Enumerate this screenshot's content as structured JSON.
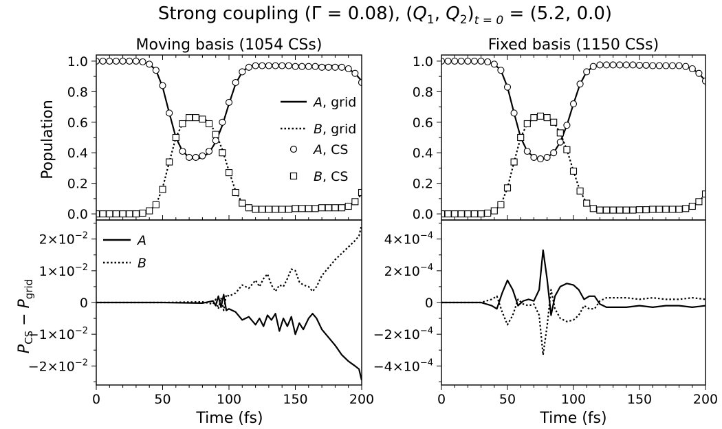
{
  "figure": {
    "title": "Strong coupling (Γ = 0.08), (Q₁, Q₂)ₜ₌₀ = (5.2, 0.0)",
    "title_parts": {
      "prefix": "Strong coupling (Γ = 0.08), (",
      "q": "Q",
      "sub1": "1",
      "sep": ", ",
      "sub2": "2",
      "close": ")",
      "tsub": "t = 0",
      "suffix": " = (5.2, 0.0)"
    }
  },
  "labels": {
    "ylabel_top": "Population",
    "ylabel_bottom_P": "P",
    "ylabel_bottom_cs": "CS",
    "ylabel_bottom_minus": " − ",
    "ylabel_bottom_grid": "grid",
    "xlabel": "Time (fs)"
  },
  "legend_top": {
    "entries": [
      {
        "state": "A",
        "suffix": ", grid",
        "style": "solid"
      },
      {
        "state": "B",
        "suffix": ", grid",
        "style": "dotted"
      },
      {
        "state": "A",
        "suffix": ", CS",
        "marker": "circle"
      },
      {
        "state": "B",
        "suffix": ", CS",
        "marker": "square"
      }
    ]
  },
  "legend_bottom": {
    "entries": [
      {
        "state": "A",
        "style": "solid"
      },
      {
        "state": "B",
        "style": "dotted"
      }
    ]
  },
  "chart_data": [
    {
      "panel": "moving-population",
      "type": "line",
      "title": "Moving basis (1054 CSs)",
      "xlabel": "",
      "ylabel": "Population",
      "xlim": [
        0,
        200
      ],
      "ylim": [
        -0.04,
        1.04
      ],
      "yticks": [
        "0.0",
        "0.2",
        "0.4",
        "0.6",
        "0.8",
        "1.0"
      ],
      "series": [
        {
          "name": "A, grid",
          "x": [
            0,
            20,
            35,
            40,
            45,
            50,
            55,
            60,
            65,
            70,
            75,
            80,
            85,
            90,
            95,
            100,
            105,
            110,
            115,
            120,
            130,
            140,
            150,
            160,
            170,
            180,
            185,
            190,
            195,
            200
          ],
          "values": [
            1.0,
            1.0,
            0.995,
            0.98,
            0.94,
            0.83,
            0.66,
            0.5,
            0.41,
            0.37,
            0.36,
            0.37,
            0.4,
            0.47,
            0.58,
            0.72,
            0.85,
            0.93,
            0.965,
            0.975,
            0.975,
            0.975,
            0.973,
            0.97,
            0.97,
            0.97,
            0.965,
            0.95,
            0.92,
            0.87
          ]
        },
        {
          "name": "B, grid",
          "x": [
            0,
            20,
            35,
            40,
            45,
            50,
            55,
            60,
            65,
            70,
            75,
            80,
            85,
            90,
            95,
            100,
            105,
            110,
            115,
            120,
            130,
            140,
            150,
            160,
            170,
            180,
            185,
            190,
            195,
            200
          ],
          "values": [
            0.0,
            0.0,
            0.005,
            0.02,
            0.06,
            0.17,
            0.34,
            0.5,
            0.59,
            0.63,
            0.64,
            0.63,
            0.6,
            0.53,
            0.42,
            0.28,
            0.15,
            0.07,
            0.035,
            0.025,
            0.025,
            0.025,
            0.027,
            0.03,
            0.03,
            0.03,
            0.035,
            0.05,
            0.08,
            0.13
          ]
        },
        {
          "name": "A, CS",
          "x": [
            0,
            5,
            10,
            15,
            20,
            25,
            30,
            35,
            40,
            45,
            50,
            55,
            60,
            65,
            70,
            75,
            80,
            85,
            90,
            95,
            100,
            105,
            110,
            115,
            120,
            125,
            130,
            135,
            140,
            145,
            150,
            155,
            160,
            165,
            170,
            175,
            180,
            185,
            190,
            195,
            200
          ],
          "values": [
            1.0,
            1.0,
            1.0,
            1.0,
            1.0,
            1.0,
            1.0,
            0.995,
            0.98,
            0.94,
            0.84,
            0.66,
            0.5,
            0.41,
            0.37,
            0.37,
            0.38,
            0.41,
            0.48,
            0.6,
            0.73,
            0.86,
            0.93,
            0.96,
            0.97,
            0.97,
            0.97,
            0.97,
            0.97,
            0.97,
            0.965,
            0.965,
            0.965,
            0.965,
            0.96,
            0.96,
            0.96,
            0.96,
            0.95,
            0.92,
            0.86
          ]
        },
        {
          "name": "B, CS",
          "x": [
            0,
            5,
            10,
            15,
            20,
            25,
            30,
            35,
            40,
            45,
            50,
            55,
            60,
            65,
            70,
            75,
            80,
            85,
            90,
            95,
            100,
            105,
            110,
            115,
            120,
            125,
            130,
            135,
            140,
            145,
            150,
            155,
            160,
            165,
            170,
            175,
            180,
            185,
            190,
            195,
            200
          ],
          "values": [
            0.0,
            0.0,
            0.0,
            0.0,
            0.0,
            0.0,
            0.0,
            0.005,
            0.02,
            0.06,
            0.16,
            0.34,
            0.5,
            0.59,
            0.63,
            0.63,
            0.62,
            0.59,
            0.52,
            0.4,
            0.27,
            0.14,
            0.07,
            0.04,
            0.03,
            0.03,
            0.03,
            0.03,
            0.03,
            0.03,
            0.035,
            0.035,
            0.035,
            0.035,
            0.04,
            0.04,
            0.04,
            0.04,
            0.05,
            0.08,
            0.14
          ]
        }
      ]
    },
    {
      "panel": "fixed-population",
      "type": "line",
      "title": "Fixed basis (1150 CSs)",
      "xlabel": "",
      "ylabel": "",
      "xlim": [
        0,
        200
      ],
      "ylim": [
        -0.04,
        1.04
      ],
      "yticks": [
        "0.0",
        "0.2",
        "0.4",
        "0.6",
        "0.8",
        "1.0"
      ],
      "series": [
        {
          "name": "A, grid",
          "x": [
            0,
            20,
            35,
            40,
            45,
            50,
            55,
            60,
            65,
            70,
            75,
            80,
            85,
            90,
            95,
            100,
            105,
            110,
            115,
            120,
            130,
            140,
            150,
            160,
            170,
            180,
            185,
            190,
            195,
            200
          ],
          "values": [
            1.0,
            1.0,
            0.995,
            0.98,
            0.94,
            0.83,
            0.66,
            0.5,
            0.41,
            0.37,
            0.36,
            0.37,
            0.4,
            0.47,
            0.58,
            0.72,
            0.85,
            0.93,
            0.965,
            0.975,
            0.975,
            0.975,
            0.973,
            0.97,
            0.97,
            0.97,
            0.965,
            0.95,
            0.92,
            0.87
          ]
        },
        {
          "name": "B, grid",
          "x": [
            0,
            20,
            35,
            40,
            45,
            50,
            55,
            60,
            65,
            70,
            75,
            80,
            85,
            90,
            95,
            100,
            105,
            110,
            115,
            120,
            130,
            140,
            150,
            160,
            170,
            180,
            185,
            190,
            195,
            200
          ],
          "values": [
            0.0,
            0.0,
            0.005,
            0.02,
            0.06,
            0.17,
            0.34,
            0.5,
            0.59,
            0.63,
            0.64,
            0.63,
            0.6,
            0.53,
            0.42,
            0.28,
            0.15,
            0.07,
            0.035,
            0.025,
            0.025,
            0.025,
            0.027,
            0.03,
            0.03,
            0.03,
            0.035,
            0.05,
            0.08,
            0.13
          ]
        },
        {
          "name": "A, CS",
          "x": [
            0,
            5,
            10,
            15,
            20,
            25,
            30,
            35,
            40,
            45,
            50,
            55,
            60,
            65,
            70,
            75,
            80,
            85,
            90,
            95,
            100,
            105,
            110,
            115,
            120,
            125,
            130,
            135,
            140,
            145,
            150,
            155,
            160,
            165,
            170,
            175,
            180,
            185,
            190,
            195,
            200
          ],
          "values": [
            1.0,
            1.0,
            1.0,
            1.0,
            1.0,
            1.0,
            1.0,
            0.995,
            0.98,
            0.94,
            0.83,
            0.66,
            0.5,
            0.41,
            0.37,
            0.36,
            0.37,
            0.4,
            0.47,
            0.58,
            0.72,
            0.85,
            0.93,
            0.965,
            0.975,
            0.975,
            0.975,
            0.975,
            0.975,
            0.975,
            0.973,
            0.973,
            0.97,
            0.97,
            0.97,
            0.97,
            0.97,
            0.965,
            0.95,
            0.92,
            0.87
          ]
        },
        {
          "name": "B, CS",
          "x": [
            0,
            5,
            10,
            15,
            20,
            25,
            30,
            35,
            40,
            45,
            50,
            55,
            60,
            65,
            70,
            75,
            80,
            85,
            90,
            95,
            100,
            105,
            110,
            115,
            120,
            125,
            130,
            135,
            140,
            145,
            150,
            155,
            160,
            165,
            170,
            175,
            180,
            185,
            190,
            195,
            200
          ],
          "values": [
            0.0,
            0.0,
            0.0,
            0.0,
            0.0,
            0.0,
            0.0,
            0.005,
            0.02,
            0.06,
            0.17,
            0.34,
            0.5,
            0.59,
            0.63,
            0.64,
            0.63,
            0.6,
            0.53,
            0.42,
            0.28,
            0.15,
            0.07,
            0.035,
            0.025,
            0.025,
            0.025,
            0.025,
            0.025,
            0.025,
            0.027,
            0.027,
            0.03,
            0.03,
            0.03,
            0.03,
            0.03,
            0.035,
            0.05,
            0.08,
            0.13
          ]
        }
      ]
    },
    {
      "panel": "moving-difference",
      "type": "line",
      "xlabel": "Time (fs)",
      "ylabel": "P_CS − P_grid",
      "xlim": [
        0,
        200
      ],
      "ylim": [
        -0.026,
        0.026
      ],
      "yticks": [
        {
          "value": 0.02,
          "mantissa": "2×10",
          "exp": "−2"
        },
        {
          "value": 0.01,
          "mantissa": "1×10",
          "exp": "−2"
        },
        {
          "value": 0,
          "mantissa": "0",
          "exp": ""
        },
        {
          "value": -0.01,
          "mantissa": "−1×10",
          "exp": "−2"
        },
        {
          "value": -0.02,
          "mantissa": "−2×10",
          "exp": "−2"
        }
      ],
      "xticks": [
        "0",
        "50",
        "100",
        "150",
        "200"
      ],
      "series": [
        {
          "name": "A",
          "x": [
            0,
            50,
            80,
            88,
            90,
            92,
            94,
            96,
            98,
            100,
            105,
            110,
            115,
            120,
            123,
            126,
            129,
            132,
            135,
            138,
            141,
            144,
            147,
            150,
            153,
            156,
            160,
            163,
            166,
            170,
            175,
            180,
            185,
            190,
            195,
            198,
            200
          ],
          "values": [
            0,
            0,
            -0.0002,
            0.0005,
            -0.001,
            0.002,
            -0.0015,
            0.0025,
            -0.0025,
            -0.002,
            -0.003,
            -0.0055,
            -0.0045,
            -0.007,
            -0.005,
            -0.0075,
            -0.004,
            -0.0055,
            -0.0035,
            -0.009,
            -0.005,
            -0.0075,
            -0.0045,
            -0.01,
            -0.0065,
            -0.0085,
            -0.005,
            -0.0035,
            -0.005,
            -0.0085,
            -0.011,
            -0.0135,
            -0.0165,
            -0.0185,
            -0.02,
            -0.021,
            -0.0245
          ]
        },
        {
          "name": "B",
          "x": [
            0,
            50,
            80,
            88,
            90,
            92,
            94,
            96,
            98,
            100,
            105,
            110,
            115,
            120,
            123,
            126,
            129,
            132,
            135,
            138,
            141,
            144,
            147,
            150,
            153,
            156,
            160,
            163,
            166,
            170,
            175,
            180,
            185,
            190,
            195,
            198,
            200
          ],
          "values": [
            0,
            0,
            0.0002,
            -0.0005,
            0.001,
            -0.002,
            0.0015,
            -0.0025,
            0.0025,
            0.002,
            0.003,
            0.0055,
            0.0045,
            0.007,
            0.005,
            0.0075,
            0.009,
            0.0055,
            0.0035,
            0.0055,
            0.005,
            0.0075,
            0.0105,
            0.01,
            0.0065,
            0.0055,
            0.005,
            0.0035,
            0.005,
            0.0085,
            0.011,
            0.0135,
            0.0155,
            0.0175,
            0.0195,
            0.021,
            0.0245
          ]
        }
      ]
    },
    {
      "panel": "fixed-difference",
      "type": "line",
      "xlabel": "Time (fs)",
      "ylabel": "",
      "xlim": [
        0,
        200
      ],
      "ylim": [
        -0.00052,
        0.00052
      ],
      "yticks": [
        {
          "value": 0.0004,
          "mantissa": "4×10",
          "exp": "−4"
        },
        {
          "value": 0.0002,
          "mantissa": "2×10",
          "exp": "−4"
        },
        {
          "value": 0,
          "mantissa": "0",
          "exp": ""
        },
        {
          "value": -0.0002,
          "mantissa": "−2×10",
          "exp": "−4"
        },
        {
          "value": -0.0004,
          "mantissa": "−4×10",
          "exp": "−4"
        }
      ],
      "xticks": [
        "0",
        "50",
        "100",
        "150",
        "200"
      ],
      "series": [
        {
          "name": "A",
          "x": [
            0,
            30,
            38,
            42,
            46,
            50,
            54,
            58,
            62,
            66,
            70,
            74,
            77,
            80,
            83,
            86,
            90,
            95,
            100,
            104,
            108,
            112,
            116,
            120,
            125,
            130,
            140,
            150,
            160,
            170,
            180,
            190,
            200
          ],
          "values": [
            0,
            0,
            -2e-05,
            -4e-05,
            6e-05,
            0.00014,
            8e-05,
            -2e-05,
            1e-05,
            2e-05,
            1e-05,
            8e-05,
            0.00033,
            0.00015,
            -8e-05,
            4e-05,
            0.0001,
            0.00012,
            0.00011,
            8e-05,
            2e-05,
            4e-05,
            4e-05,
            -1e-05,
            -3e-05,
            -3e-05,
            -3e-05,
            -2e-05,
            -3e-05,
            -2e-05,
            -2e-05,
            -3e-05,
            -2e-05
          ]
        },
        {
          "name": "B",
          "x": [
            0,
            30,
            38,
            42,
            46,
            50,
            54,
            58,
            62,
            66,
            70,
            74,
            77,
            80,
            83,
            86,
            90,
            95,
            100,
            104,
            108,
            112,
            116,
            120,
            125,
            130,
            140,
            150,
            160,
            170,
            180,
            190,
            200
          ],
          "values": [
            0,
            0,
            2e-05,
            4e-05,
            -6e-05,
            -0.00014,
            -8e-05,
            2e-05,
            -1e-05,
            -2e-05,
            -1e-05,
            -8e-05,
            -0.00033,
            -0.00015,
            8e-05,
            -4e-05,
            -0.0001,
            -0.00012,
            -0.00011,
            -8e-05,
            -2e-05,
            -4e-05,
            -4e-05,
            1e-05,
            3e-05,
            3e-05,
            3e-05,
            2e-05,
            3e-05,
            2e-05,
            2e-05,
            3e-05,
            2e-05
          ]
        }
      ]
    }
  ]
}
